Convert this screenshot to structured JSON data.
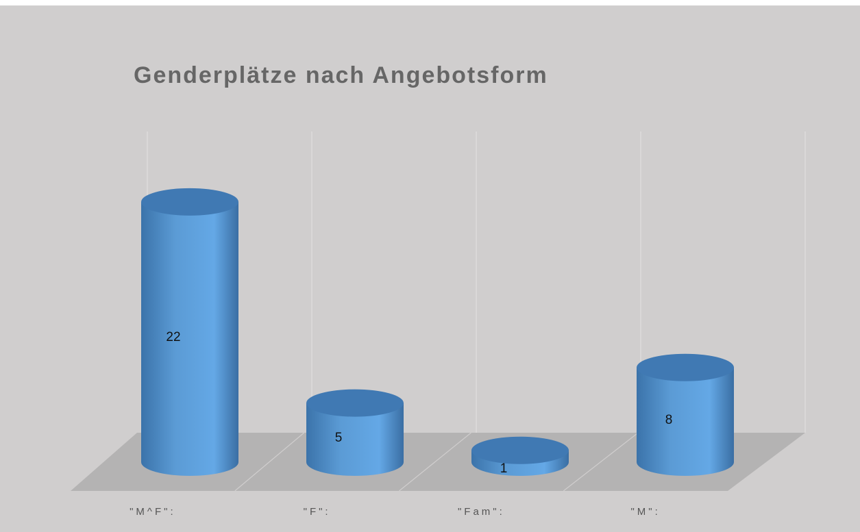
{
  "chart_data": {
    "type": "cylinder",
    "title": "Genderplätze nach Angebotsform",
    "categories": [
      "\"M^F\":",
      "\"F\":",
      "\"Fam\":",
      "\"M\":"
    ],
    "values": [
      22,
      5,
      1,
      8
    ],
    "color": "#5b9bd5",
    "ylim": [
      0,
      25
    ]
  }
}
